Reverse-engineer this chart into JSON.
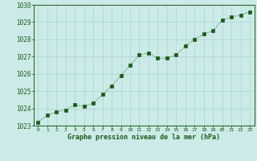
{
  "x": [
    0,
    1,
    2,
    3,
    4,
    5,
    6,
    7,
    8,
    9,
    10,
    11,
    12,
    13,
    14,
    15,
    16,
    17,
    18,
    19,
    20,
    21,
    22,
    23
  ],
  "y": [
    1023.2,
    1023.6,
    1023.8,
    1023.9,
    1024.2,
    1024.1,
    1024.3,
    1024.8,
    1025.3,
    1025.9,
    1026.5,
    1027.1,
    1027.2,
    1026.9,
    1026.9,
    1027.1,
    1027.6,
    1028.0,
    1028.3,
    1028.5,
    1029.1,
    1029.3,
    1029.4,
    1029.6
  ],
  "line_color": "#1a5c1a",
  "marker_color": "#1a5c1a",
  "bg_color": "#cceae7",
  "grid_color": "#aad4d0",
  "xlabel": "Graphe pression niveau de la mer (hPa)",
  "xlabel_color": "#1a5c1a",
  "tick_color": "#1a5c1a",
  "ylim_min": 1023,
  "ylim_max": 1030,
  "xlim_min": -0.5,
  "xlim_max": 23.5,
  "yticks": [
    1023,
    1024,
    1025,
    1026,
    1027,
    1028,
    1029,
    1030
  ],
  "xticks": [
    0,
    1,
    2,
    3,
    4,
    5,
    6,
    7,
    8,
    9,
    10,
    11,
    12,
    13,
    14,
    15,
    16,
    17,
    18,
    19,
    20,
    21,
    22,
    23
  ]
}
